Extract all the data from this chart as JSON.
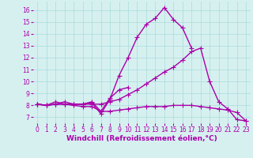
{
  "background_color": "#d6f0f0",
  "grid_color": "#b0dede",
  "line_color": "#aa00aa",
  "marker": "+",
  "markersize": 4,
  "linewidth": 1.0,
  "xlabel": "Windchill (Refroidissement éolien,°C)",
  "xlabel_fontsize": 6.5,
  "tick_fontsize": 5.5,
  "xlim": [
    -0.5,
    23.5
  ],
  "ylim": [
    6.5,
    16.7
  ],
  "yticks": [
    7,
    8,
    9,
    10,
    11,
    12,
    13,
    14,
    15,
    16
  ],
  "xticks": [
    0,
    1,
    2,
    3,
    4,
    5,
    6,
    7,
    8,
    9,
    10,
    11,
    12,
    13,
    14,
    15,
    16,
    17,
    18,
    19,
    20,
    21,
    22,
    23
  ],
  "series": [
    [
      8.1,
      8.0,
      8.3,
      8.1,
      8.1,
      8.1,
      8.2,
      7.3,
      8.5,
      10.5,
      12.0,
      13.7,
      14.8,
      15.3,
      16.2,
      15.2,
      14.5,
      12.8,
      null,
      null,
      null,
      null,
      null,
      null
    ],
    [
      8.1,
      8.0,
      8.1,
      8.3,
      8.1,
      8.1,
      8.3,
      7.5,
      8.6,
      9.3,
      9.5,
      null,
      null,
      null,
      null,
      null,
      null,
      null,
      null,
      null,
      null,
      null,
      null,
      null
    ],
    [
      8.1,
      8.0,
      8.1,
      8.1,
      8.1,
      8.1,
      8.1,
      8.1,
      8.3,
      8.5,
      8.9,
      9.3,
      9.8,
      10.3,
      10.8,
      11.2,
      11.8,
      12.5,
      12.8,
      10.0,
      8.3,
      7.7,
      6.8,
      6.7
    ],
    [
      8.1,
      8.0,
      8.1,
      8.1,
      8.0,
      7.9,
      7.9,
      7.5,
      7.5,
      7.6,
      7.7,
      7.8,
      7.9,
      7.9,
      7.9,
      8.0,
      8.0,
      8.0,
      7.9,
      7.8,
      7.7,
      7.6,
      7.4,
      6.7
    ]
  ]
}
